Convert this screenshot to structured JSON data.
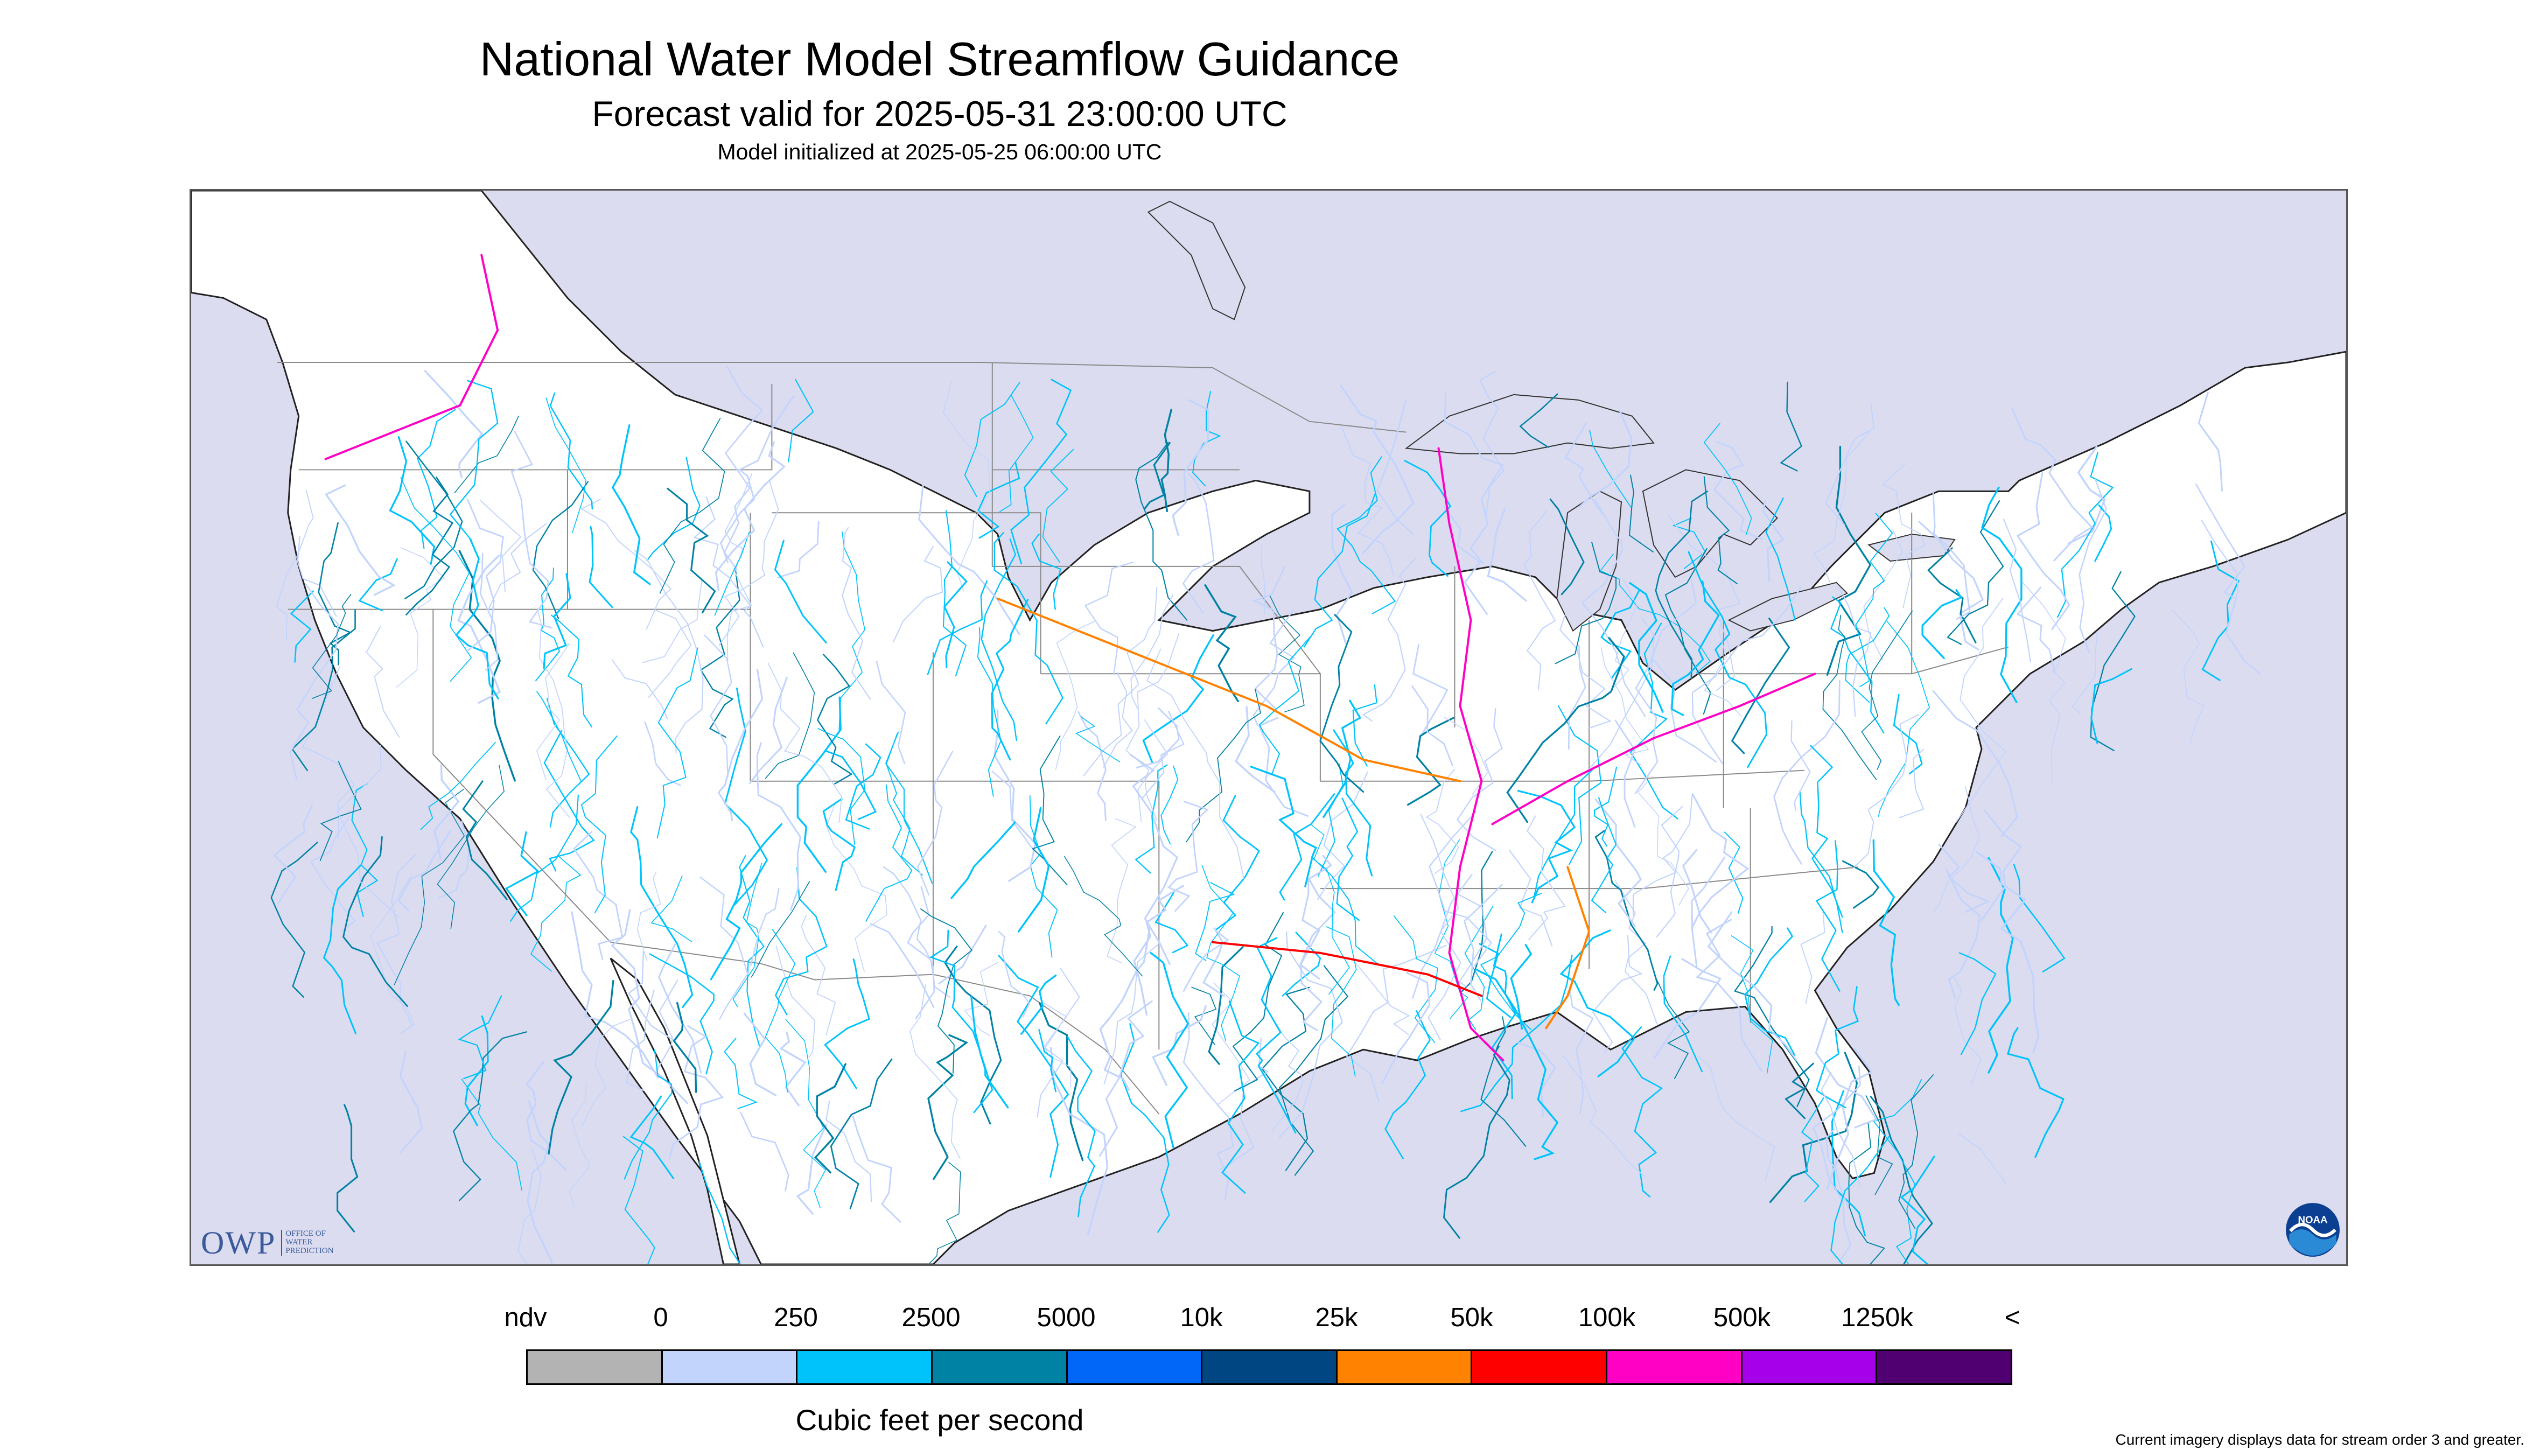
{
  "title": "National Water Model Streamflow Guidance",
  "subtitle": "Forecast valid for 2025-05-31 23:00:00 UTC",
  "init_line": "Model initialized at 2025-05-25 06:00:00 UTC",
  "logos": {
    "owp_word": "OWP",
    "owp_sub": [
      "OFFICE OF",
      "WATER",
      "PREDICTION"
    ],
    "noaa": "NOAA"
  },
  "legend": {
    "labels": [
      "ndv",
      "0",
      "250",
      "2500",
      "5000",
      "10k",
      "25k",
      "50k",
      "100k",
      "500k",
      "1250k",
      "<"
    ],
    "colors": [
      "#b3b3b3",
      "#c2d4fc",
      "#00c3fb",
      "#0082a5",
      "#0067f9",
      "#004682",
      "#ff8200",
      "#ff0000",
      "#ff00c5",
      "#a600ea",
      "#500070"
    ],
    "units": "Cubic feet per second"
  },
  "footnote": "Current imagery displays data for stream order 3 and greater.",
  "map_colors": {
    "water": "#dcdcf0",
    "land": "#ffffff",
    "border": "#8a8a8a",
    "coast": "#000000"
  }
}
